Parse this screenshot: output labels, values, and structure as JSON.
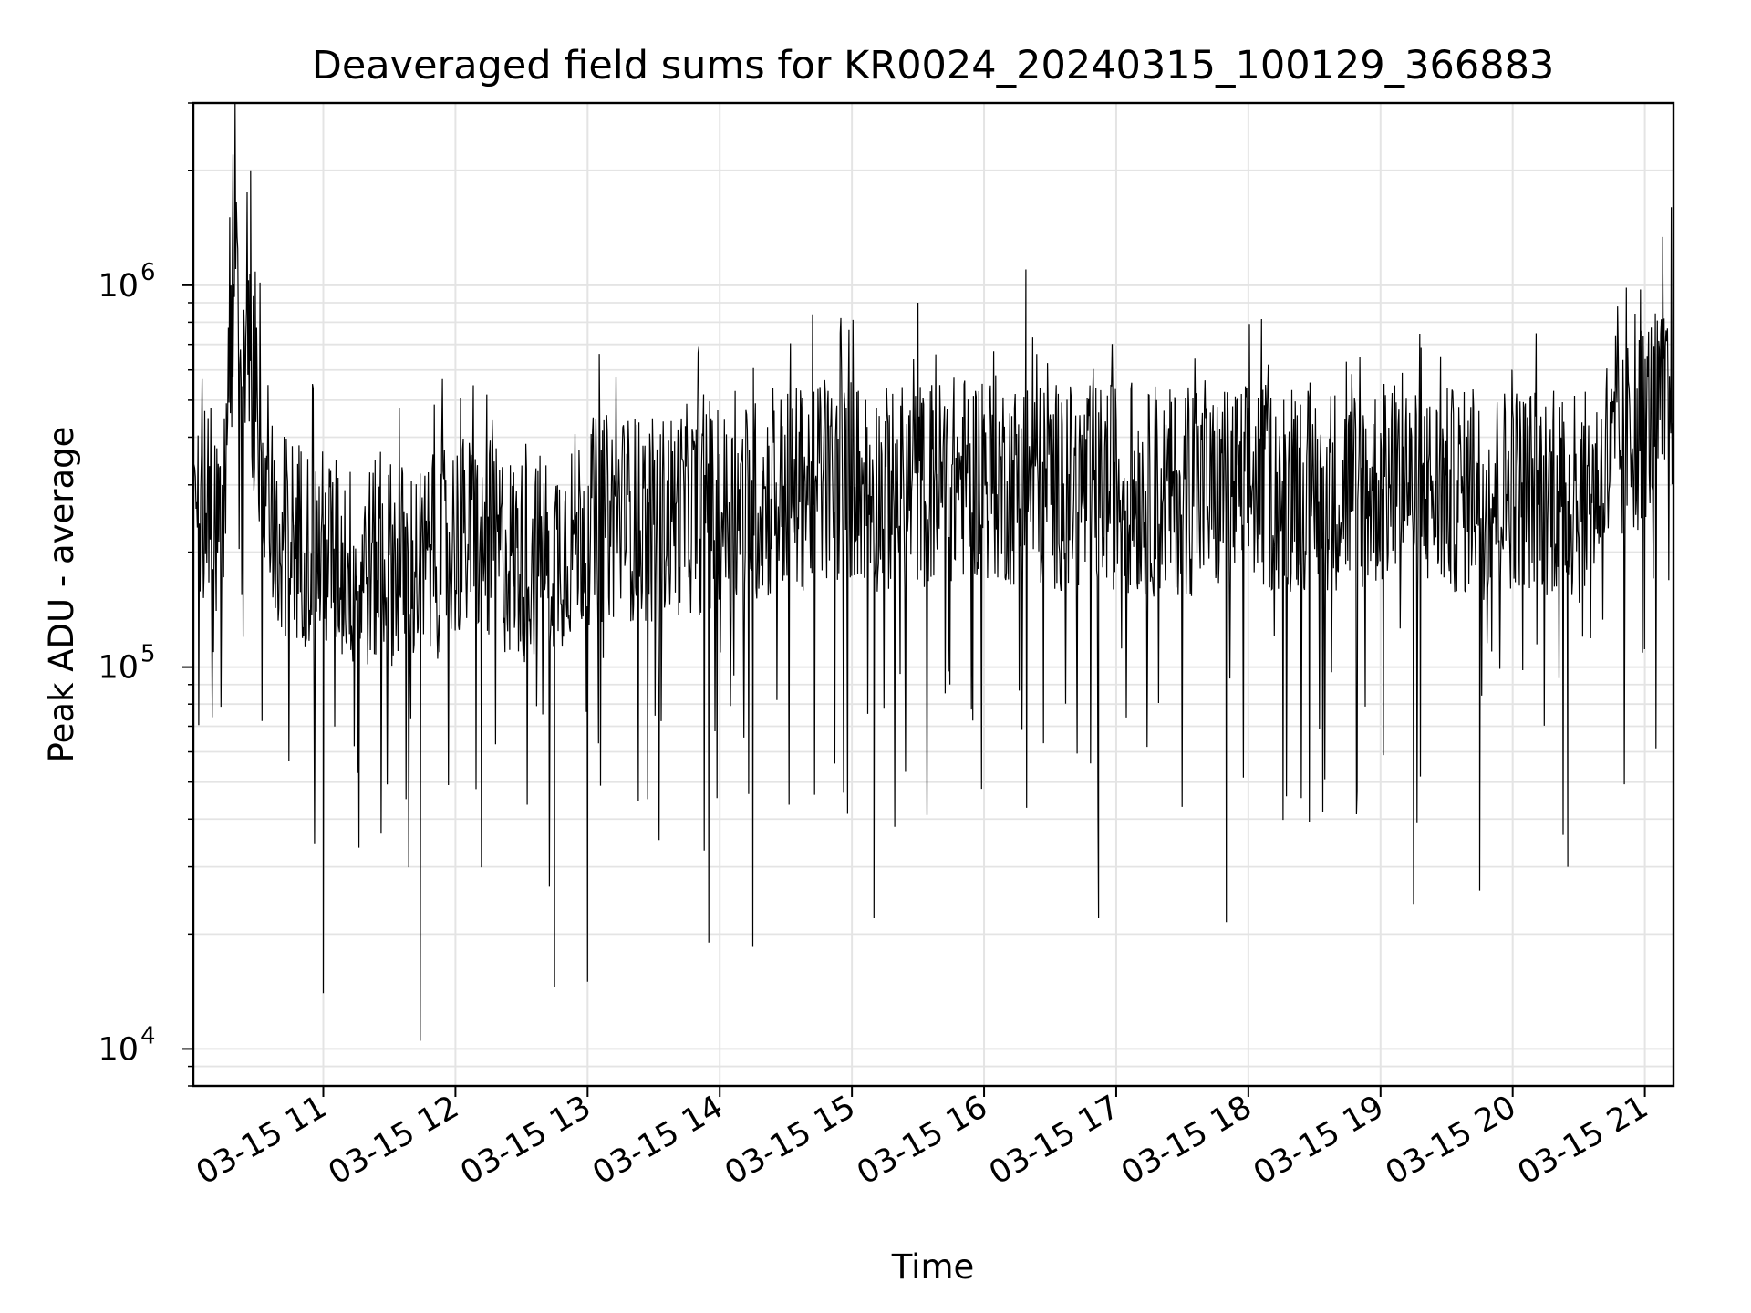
{
  "chart_data": {
    "type": "line",
    "title": "Deaveraged field sums for KR0024_20240315_100129_366883",
    "xlabel": "Time",
    "ylabel": "Peak ADU - average",
    "yscale": "log",
    "xlim": [
      "03-15 10:01",
      "03-15 21:13"
    ],
    "ylim": [
      8000,
      3000000
    ],
    "grid": true,
    "line_color": "#000000",
    "x_ticks": [
      "03-15 11",
      "03-15 12",
      "03-15 13",
      "03-15 14",
      "03-15 15",
      "03-15 16",
      "03-15 17",
      "03-15 18",
      "03-15 19",
      "03-15 20",
      "03-15 21"
    ],
    "y_ticks": [
      {
        "base": "10",
        "exp": "4",
        "value": 10000
      },
      {
        "base": "10",
        "exp": "5",
        "value": 100000
      },
      {
        "base": "10",
        "exp": "6",
        "value": 1000000
      }
    ],
    "series": [
      {
        "x": [
          "03-15 10:01",
          "03-15 10:15",
          "03-15 10:20",
          "03-15 10:30",
          "03-15 10:40",
          "03-15 11:00",
          "03-15 11:15",
          "03-15 11:30",
          "03-15 11:45",
          "03-15 12:00",
          "03-15 12:15",
          "03-15 12:30",
          "03-15 12:45",
          "03-15 13:00",
          "03-15 13:15",
          "03-15 13:30",
          "03-15 13:45",
          "03-15 14:00",
          "03-15 14:15",
          "03-15 14:30",
          "03-15 14:45",
          "03-15 15:00",
          "03-15 15:15",
          "03-15 15:30",
          "03-15 15:45",
          "03-15 16:00",
          "03-15 16:15",
          "03-15 16:30",
          "03-15 16:45",
          "03-15 17:00",
          "03-15 17:15",
          "03-15 17:30",
          "03-15 17:45",
          "03-15 18:00",
          "03-15 18:15",
          "03-15 18:30",
          "03-15 18:45",
          "03-15 19:00",
          "03-15 19:15",
          "03-15 19:30",
          "03-15 19:45",
          "03-15 20:00",
          "03-15 20:15",
          "03-15 20:30",
          "03-15 20:45",
          "03-15 21:00",
          "03-15 21:13"
        ],
        "y": [
          260000,
          250000,
          1300000,
          430000,
          230000,
          200000,
          180000,
          190000,
          180000,
          220000,
          210000,
          190000,
          200000,
          240000,
          250000,
          240000,
          260000,
          250000,
          270000,
          290000,
          300000,
          310000,
          290000,
          300000,
          310000,
          320000,
          300000,
          300000,
          290000,
          300000,
          280000,
          290000,
          280000,
          300000,
          290000,
          300000,
          290000,
          300000,
          280000,
          290000,
          280000,
          300000,
          290000,
          270000,
          330000,
          450000,
          500000
        ],
        "spikes_high": [
          {
            "x": "03-15 10:19",
            "y": 2200000
          },
          {
            "x": "03-15 10:27",
            "y": 2000000
          },
          {
            "x": "03-15 15:30",
            "y": 900000
          },
          {
            "x": "03-15 16:19",
            "y": 1100000
          },
          {
            "x": "03-15 21:12",
            "y": 1600000
          }
        ],
        "spikes_low": [
          {
            "x": "03-15 11:00",
            "y": 14000
          },
          {
            "x": "03-15 11:44",
            "y": 10500
          },
          {
            "x": "03-15 12:45",
            "y": 14500
          },
          {
            "x": "03-15 13:00",
            "y": 15000
          },
          {
            "x": "03-15 13:55",
            "y": 19000
          },
          {
            "x": "03-15 14:15",
            "y": 18500
          },
          {
            "x": "03-15 15:10",
            "y": 22000
          },
          {
            "x": "03-15 16:52",
            "y": 22000
          },
          {
            "x": "03-15 17:50",
            "y": 21500
          },
          {
            "x": "03-15 19:15",
            "y": 24000
          },
          {
            "x": "03-15 19:45",
            "y": 26000
          },
          {
            "x": "03-15 20:25",
            "y": 30000
          }
        ]
      }
    ]
  }
}
